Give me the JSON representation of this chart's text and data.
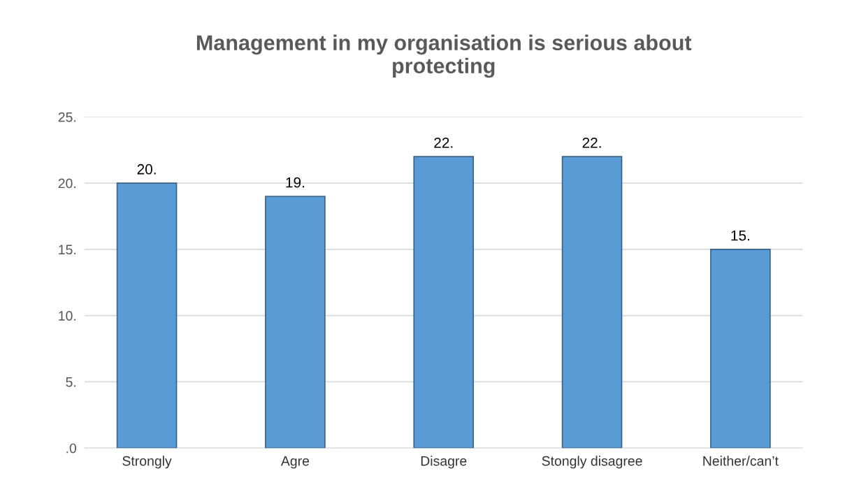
{
  "chart_data": {
    "type": "bar",
    "title": "Management in my organisation is serious about\nprotecting",
    "categories": [
      "Strongly",
      "Agre",
      "Disagre",
      "Stongly disagree",
      "Neither/can’t"
    ],
    "values": [
      20,
      19,
      22,
      22,
      15
    ],
    "value_labels": [
      "20.",
      "19.",
      "22.",
      "22.",
      "15."
    ],
    "color": "#5b9bd5",
    "ylim": [
      0,
      25
    ],
    "yticks": [
      {
        "value": 0,
        "label": ".0"
      },
      {
        "value": 5,
        "label": "5."
      },
      {
        "value": 10,
        "label": "10."
      },
      {
        "value": 15,
        "label": "15."
      },
      {
        "value": 20,
        "label": "20."
      },
      {
        "value": 25,
        "label": "25."
      }
    ],
    "grid": "y"
  }
}
